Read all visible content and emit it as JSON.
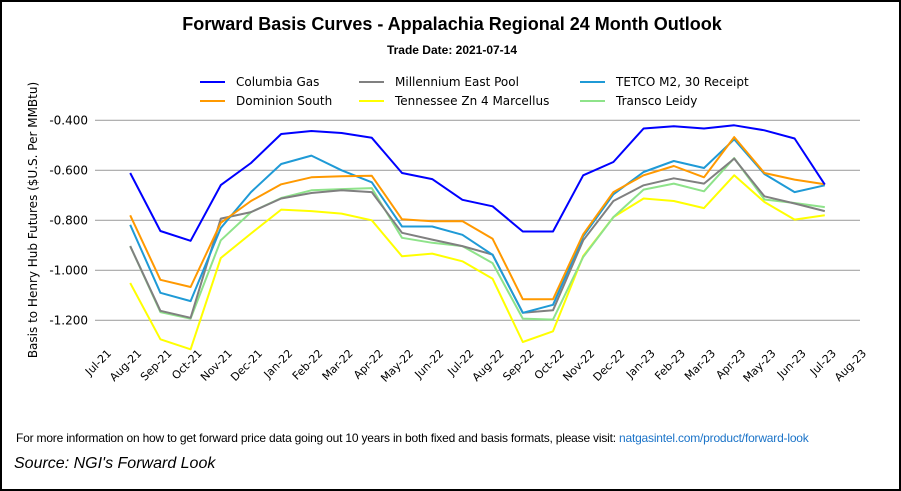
{
  "chart_data": {
    "type": "line",
    "title": "Forward Basis Curves - Appalachia Regional 24 Month Outlook",
    "subtitle": "Trade Date: 2021-07-14",
    "ylabel": "Basis to Henry Hub Futures ($U.S. Per MMBtu)",
    "xlabel": "",
    "ylim": [
      -1.35,
      -0.3
    ],
    "yticks": [
      -0.4,
      -0.6,
      -0.8,
      -1.0,
      -1.2
    ],
    "ytick_labels": [
      "-0.400",
      "-0.600",
      "-0.800",
      "-1.000",
      "-1.200"
    ],
    "xtick_labels": [
      "Jul-21",
      "Aug-21",
      "Sep-21",
      "Oct-21",
      "Nov-21",
      "Dec-21",
      "Jan-22",
      "Feb-22",
      "Mar-22",
      "Apr-22",
      "May-22",
      "Jun-22",
      "Jul-22",
      "Aug-22",
      "Sep-22",
      "Oct-22",
      "Nov-22",
      "Dec-22",
      "Jan-23",
      "Feb-23",
      "Mar-23",
      "Apr-23",
      "May-23",
      "Jun-23",
      "Jul-23",
      "Aug-23"
    ],
    "x": [
      "Aug-21",
      "Sep-21",
      "Oct-21",
      "Nov-21",
      "Dec-21",
      "Jan-22",
      "Feb-22",
      "Mar-22",
      "Apr-22",
      "May-22",
      "Jun-22",
      "Jul-22",
      "Aug-22",
      "Sep-22",
      "Oct-22",
      "Nov-22",
      "Dec-22",
      "Jan-23",
      "Feb-23",
      "Mar-23",
      "Apr-23",
      "May-23",
      "Jun-23",
      "Jul-23"
    ],
    "grid": true,
    "legend_placement": "top",
    "series": [
      {
        "name": "Columbia Gas",
        "color": "#0000ff",
        "values": [
          -0.611,
          -0.843,
          -0.882,
          -0.659,
          -0.571,
          -0.455,
          -0.443,
          -0.451,
          -0.47,
          -0.611,
          -0.635,
          -0.718,
          -0.744,
          -0.845,
          -0.845,
          -0.62,
          -0.567,
          -0.433,
          -0.424,
          -0.433,
          -0.42,
          -0.44,
          -0.473,
          -0.657
        ]
      },
      {
        "name": "Dominion South",
        "color": "#ff9900",
        "values": [
          -0.78,
          -1.038,
          -1.067,
          -0.81,
          -0.723,
          -0.656,
          -0.628,
          -0.624,
          -0.622,
          -0.796,
          -0.804,
          -0.803,
          -0.874,
          -1.116,
          -1.116,
          -0.856,
          -0.687,
          -0.62,
          -0.583,
          -0.628,
          -0.467,
          -0.611,
          -0.637,
          -0.656
        ]
      },
      {
        "name": "Millennium East Pool",
        "color": "#808080",
        "values": [
          -0.903,
          -1.162,
          -1.19,
          -0.793,
          -0.767,
          -0.713,
          -0.691,
          -0.68,
          -0.687,
          -0.85,
          -0.877,
          -0.903,
          -0.937,
          -1.17,
          -1.16,
          -0.88,
          -0.723,
          -0.66,
          -0.632,
          -0.653,
          -0.553,
          -0.704,
          -0.733,
          -0.763
        ]
      },
      {
        "name": "Tennessee Zn 4 Marcellus",
        "color": "#ffff00",
        "values": [
          -1.051,
          -1.276,
          -1.316,
          -0.951,
          -0.853,
          -0.757,
          -0.763,
          -0.773,
          -0.8,
          -0.944,
          -0.933,
          -0.964,
          -1.034,
          -1.287,
          -1.244,
          -0.943,
          -0.787,
          -0.713,
          -0.723,
          -0.751,
          -0.62,
          -0.727,
          -0.797,
          -0.78
        ]
      },
      {
        "name": "TETCO M2, 30 Receipt",
        "color": "#1f9ad6",
        "values": [
          -0.818,
          -1.09,
          -1.123,
          -0.831,
          -0.687,
          -0.575,
          -0.541,
          -0.6,
          -0.648,
          -0.825,
          -0.825,
          -0.858,
          -0.938,
          -1.17,
          -1.138,
          -0.864,
          -0.696,
          -0.607,
          -0.563,
          -0.591,
          -0.476,
          -0.615,
          -0.687,
          -0.66
        ]
      },
      {
        "name": "Transco Leidy",
        "color": "#8ee38a",
        "values": [
          -0.903,
          -1.167,
          -1.193,
          -0.88,
          -0.767,
          -0.711,
          -0.68,
          -0.675,
          -0.671,
          -0.87,
          -0.89,
          -0.903,
          -0.971,
          -1.193,
          -1.197,
          -0.947,
          -0.787,
          -0.677,
          -0.653,
          -0.684,
          -0.551,
          -0.717,
          -0.731,
          -0.747
        ]
      }
    ]
  },
  "footer": {
    "note": "For more information on how to get forward price data going out 10 years in both fixed and basis formats, please visit: ",
    "link": "natgasintel.com/product/forward-look",
    "source": "Source: NGI's Forward Look"
  }
}
